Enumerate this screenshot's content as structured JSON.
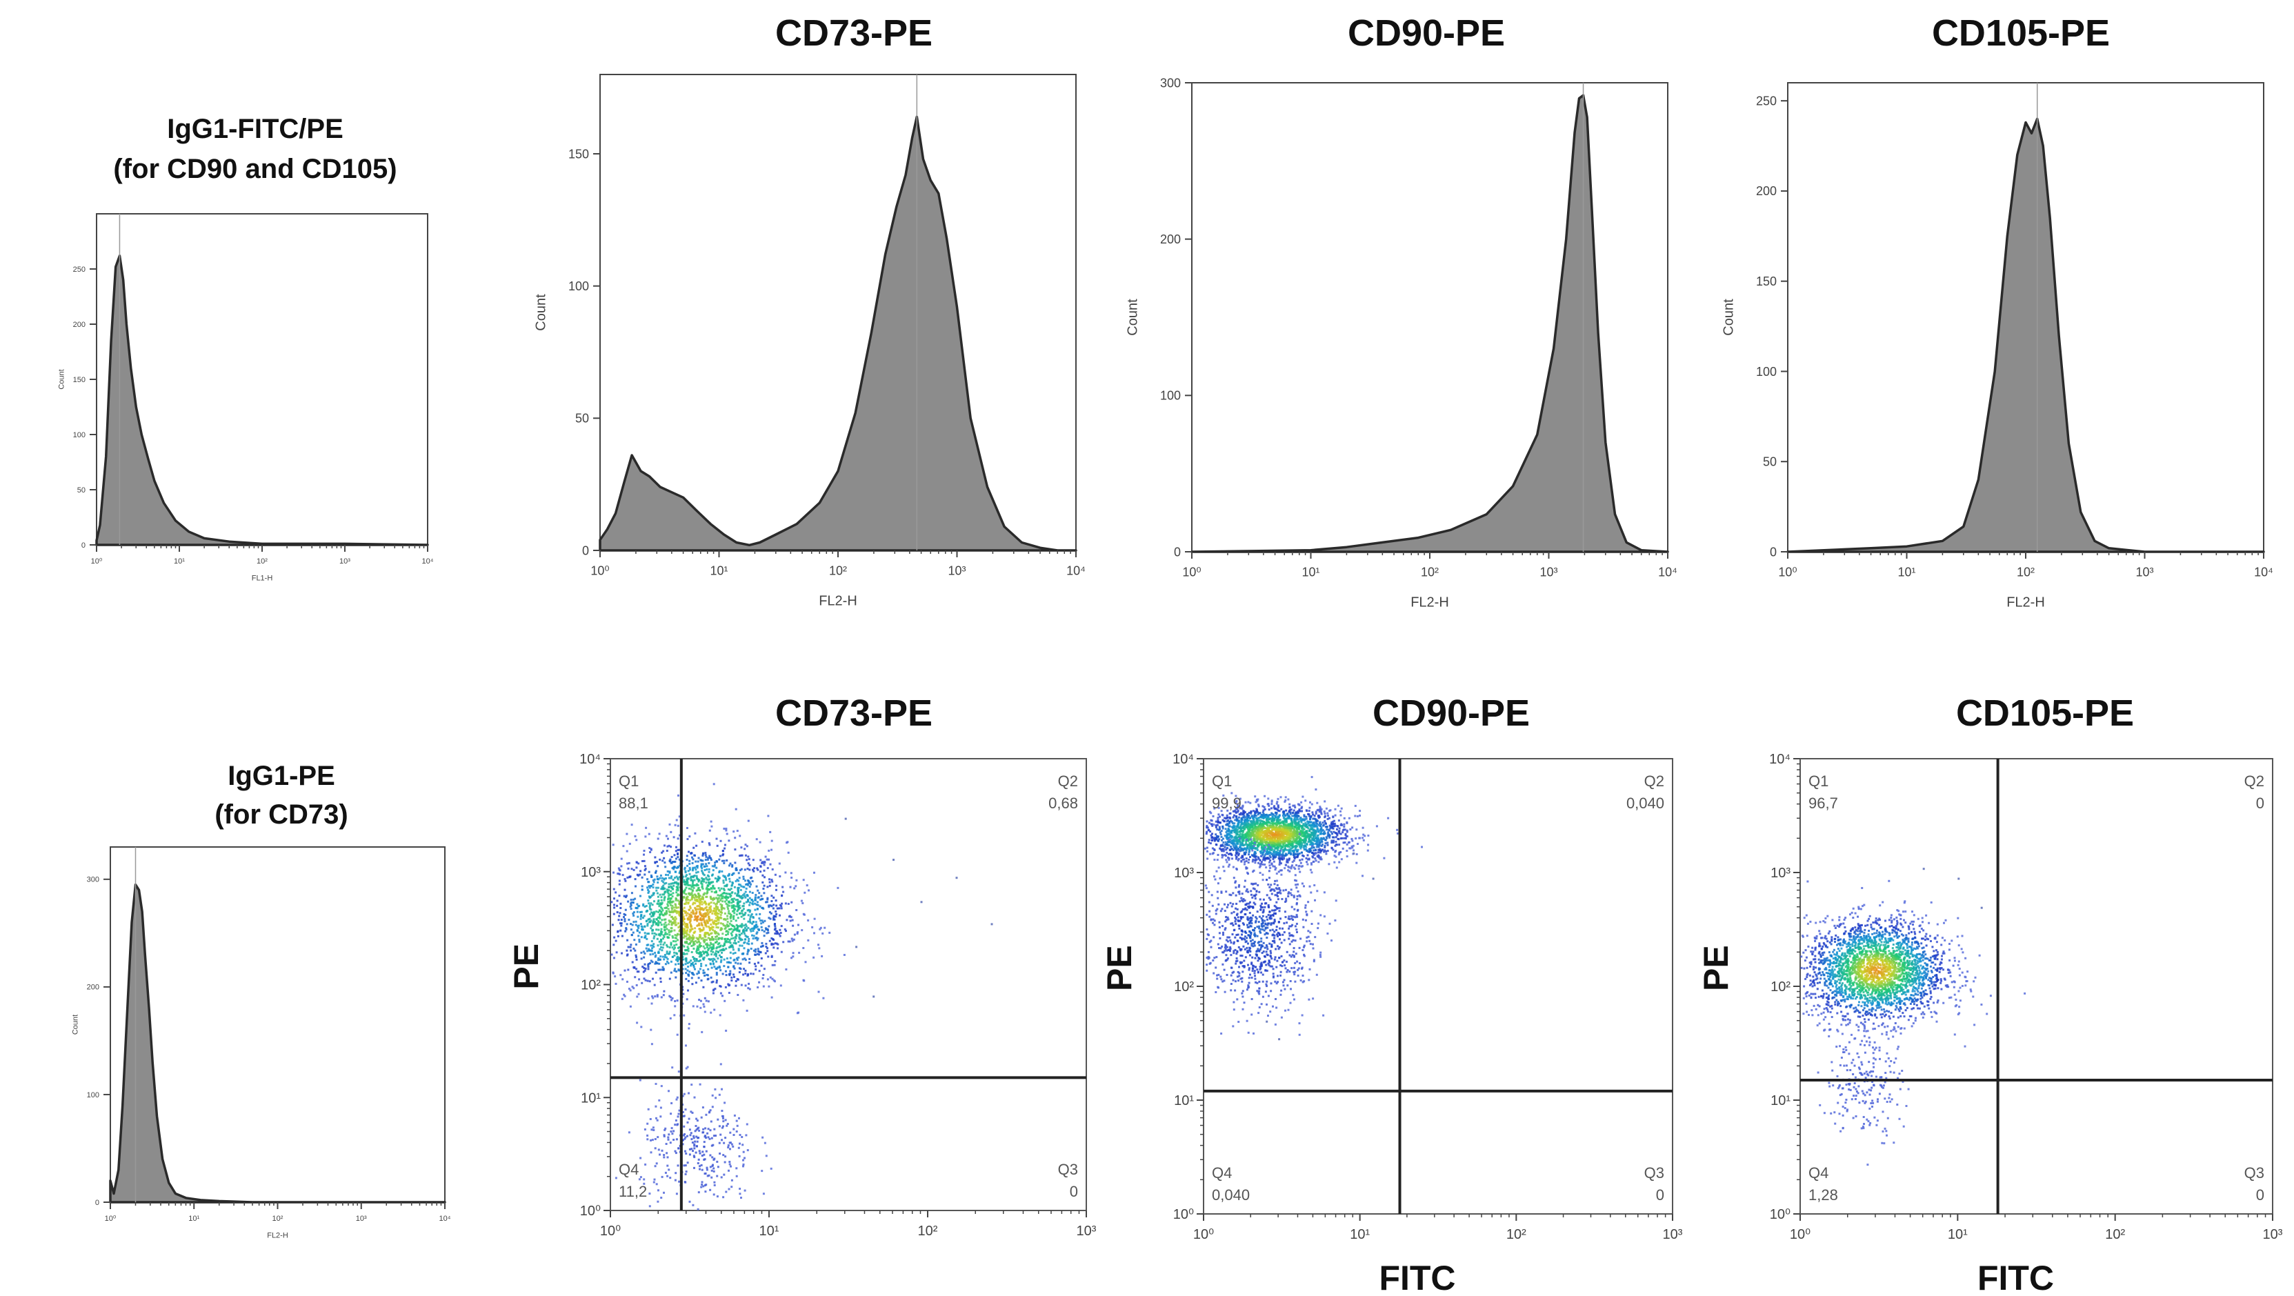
{
  "figure": {
    "top_titles": [
      "CD73-PE",
      "CD90-PE",
      "CD105-PE"
    ],
    "bottom_titles": [
      "CD73-PE",
      "CD90-PE",
      "CD105-PE"
    ],
    "control_top_title": [
      "IgG1-FITC/PE",
      "(for CD90 and CD105)"
    ],
    "control_bottom_title": [
      "IgG1-PE",
      "(for CD73)"
    ]
  },
  "chart_data": [
    {
      "id": "ctl1",
      "type": "area",
      "title": "IgG1-FITC/PE (for CD90 and CD105)",
      "xlabel": "FL1-H",
      "ylabel": "Count",
      "x_scale": "log",
      "xlim": [
        1,
        10000
      ],
      "x_ticks": [
        "10⁰",
        "10¹",
        "10²",
        "10³",
        "10⁴"
      ],
      "ylim": [
        0,
        300
      ],
      "y_ticks": [
        0,
        50,
        100,
        150,
        200,
        250
      ],
      "series": [
        {
          "x": [
            1,
            1.1,
            1.3,
            1.5,
            1.7,
            1.9,
            2.1,
            2.3,
            2.6,
            3,
            3.5,
            4.2,
            5,
            6.5,
            9,
            13,
            20,
            40,
            100,
            1000,
            10000
          ],
          "values": [
            4,
            18,
            80,
            185,
            252,
            262,
            240,
            200,
            160,
            125,
            100,
            78,
            58,
            38,
            22,
            12,
            6,
            3,
            1,
            1,
            0
          ]
        }
      ]
    },
    {
      "id": "cd73",
      "type": "area",
      "title": "CD73-PE",
      "xlabel": "FL2-H",
      "ylabel": "Count",
      "x_scale": "log",
      "xlim": [
        1,
        10000
      ],
      "x_ticks": [
        "10⁰",
        "10¹",
        "10²",
        "10³",
        "10⁴"
      ],
      "ylim": [
        0,
        180
      ],
      "y_ticks": [
        0,
        50,
        100,
        150
      ],
      "series": [
        {
          "x": [
            1,
            1.15,
            1.35,
            1.6,
            1.85,
            2.2,
            2.6,
            3.2,
            4,
            5,
            6.5,
            8.5,
            11,
            14,
            18,
            22,
            30,
            45,
            70,
            100,
            140,
            190,
            250,
            310,
            370,
            420,
            460,
            520,
            600,
            700,
            820,
            1000,
            1300,
            1800,
            2500,
            3500,
            5000,
            7000,
            10000
          ],
          "values": [
            4,
            8,
            14,
            26,
            36,
            30,
            28,
            24,
            22,
            20,
            15,
            10,
            6,
            3,
            2,
            3,
            6,
            10,
            18,
            30,
            52,
            82,
            112,
            130,
            142,
            156,
            164,
            148,
            140,
            135,
            118,
            92,
            50,
            24,
            9,
            3,
            1,
            0,
            0
          ]
        }
      ]
    },
    {
      "id": "cd90",
      "type": "area",
      "title": "CD90-PE",
      "xlabel": "FL2-H",
      "ylabel": "Count",
      "x_scale": "log",
      "xlim": [
        1,
        10000
      ],
      "x_ticks": [
        "10⁰",
        "10¹",
        "10²",
        "10³",
        "10⁴"
      ],
      "ylim": [
        0,
        300
      ],
      "y_ticks": [
        0,
        100,
        200,
        300
      ],
      "series": [
        {
          "x": [
            1,
            10,
            20,
            40,
            80,
            150,
            300,
            500,
            800,
            1100,
            1400,
            1650,
            1800,
            1950,
            2100,
            2300,
            2600,
            3000,
            3600,
            4500,
            6000,
            10000
          ],
          "values": [
            0,
            1,
            3,
            6,
            9,
            14,
            24,
            42,
            75,
            130,
            200,
            268,
            290,
            292,
            278,
            220,
            140,
            70,
            24,
            6,
            1,
            0
          ]
        }
      ]
    },
    {
      "id": "cd105",
      "type": "area",
      "title": "CD105-PE",
      "xlabel": "FL2-H",
      "ylabel": "Count",
      "x_scale": "log",
      "xlim": [
        1,
        10000
      ],
      "x_ticks": [
        "10⁰",
        "10¹",
        "10²",
        "10³",
        "10⁴"
      ],
      "ylim": [
        0,
        260
      ],
      "y_ticks": [
        0,
        50,
        100,
        150,
        200,
        250
      ],
      "series": [
        {
          "x": [
            1,
            5,
            10,
            20,
            30,
            40,
            55,
            70,
            85,
            100,
            112,
            125,
            140,
            160,
            190,
            230,
            290,
            380,
            500,
            700,
            1000,
            10000
          ],
          "values": [
            0,
            2,
            3,
            6,
            14,
            40,
            100,
            175,
            220,
            238,
            232,
            240,
            225,
            185,
            120,
            60,
            22,
            6,
            2,
            1,
            0,
            0
          ]
        }
      ]
    },
    {
      "id": "ctl2",
      "type": "area",
      "title": "IgG1-PE (for CD73)",
      "xlabel": "FL2-H",
      "ylabel": "Count",
      "x_scale": "log",
      "xlim": [
        1,
        10000
      ],
      "x_ticks": [
        "10⁰",
        "10¹",
        "10²",
        "10³",
        "10⁴"
      ],
      "ylim": [
        0,
        330
      ],
      "y_ticks": [
        0,
        100,
        200,
        300
      ],
      "series": [
        {
          "x": [
            1,
            1.1,
            1.25,
            1.4,
            1.6,
            1.8,
            2.0,
            2.2,
            2.4,
            2.6,
            2.9,
            3.2,
            3.6,
            4.2,
            5,
            6,
            8,
            12,
            20,
            50,
            1000,
            10000
          ],
          "values": [
            20,
            8,
            30,
            90,
            180,
            260,
            295,
            290,
            270,
            230,
            180,
            130,
            80,
            40,
            18,
            8,
            4,
            2,
            1,
            0,
            0,
            0
          ]
        }
      ]
    },
    {
      "id": "dot_cd73",
      "type": "scatter",
      "title": "CD73-PE",
      "xlabel": "",
      "ylabel": "PE",
      "x_scale": "log",
      "y_scale": "log",
      "xlim": [
        1,
        1000
      ],
      "ylim": [
        1,
        10000
      ],
      "x_ticks": [
        "10⁰",
        "10¹",
        "10²",
        "10³"
      ],
      "y_ticks": [
        "10⁰",
        "10¹",
        "10²",
        "10³",
        "10⁴"
      ],
      "gate": {
        "x": 2.8,
        "y": 15
      },
      "quadrants": {
        "Q1": "88,1",
        "Q2": "0,68",
        "Q3": "0",
        "Q4": "11,2"
      },
      "clusters": [
        {
          "cx": 3.5,
          "cy": 400,
          "sx": 0.28,
          "sy": 0.33,
          "weight": 1.0
        },
        {
          "cx": 3.5,
          "cy": 3.5,
          "sx": 0.18,
          "sy": 0.28,
          "weight": 0.13
        }
      ],
      "stray_points": [
        [
          60,
          1300
        ],
        [
          90,
          550
        ],
        [
          35,
          220
        ],
        [
          150,
          900
        ],
        [
          45,
          80
        ],
        [
          250,
          350
        ],
        [
          30,
          3000
        ]
      ]
    },
    {
      "id": "dot_cd90",
      "type": "scatter",
      "title": "CD90-PE",
      "xlabel": "FITC",
      "ylabel": "PE",
      "x_scale": "log",
      "y_scale": "log",
      "xlim": [
        1,
        1000
      ],
      "ylim": [
        1,
        10000
      ],
      "x_ticks": [
        "10⁰",
        "10¹",
        "10²",
        "10³"
      ],
      "y_ticks": [
        "10⁰",
        "10¹",
        "10²",
        "10³",
        "10⁴"
      ],
      "gate": {
        "x": 18,
        "y": 12
      },
      "quadrants": {
        "Q1": "99,9",
        "Q2": "0,040",
        "Q3": "0",
        "Q4": "0,040"
      },
      "clusters": [
        {
          "cx": 2.8,
          "cy": 2200,
          "sx": 0.22,
          "sy": 0.12,
          "weight": 1.0
        },
        {
          "cx": 2.2,
          "cy": 300,
          "sx": 0.18,
          "sy": 0.32,
          "weight": 0.35
        }
      ],
      "stray_points": [
        [
          12,
          900
        ],
        [
          9,
          1500
        ],
        [
          3,
          35
        ],
        [
          2.5,
          50
        ]
      ]
    },
    {
      "id": "dot_cd105",
      "type": "scatter",
      "title": "CD105-PE",
      "xlabel": "FITC",
      "ylabel": "PE",
      "x_scale": "log",
      "y_scale": "log",
      "xlim": [
        1,
        1000
      ],
      "ylim": [
        1,
        10000
      ],
      "x_ticks": [
        "10⁰",
        "10¹",
        "10²",
        "10³"
      ],
      "y_ticks": [
        "10⁰",
        "10¹",
        "10²",
        "10³",
        "10⁴"
      ],
      "gate": {
        "x": 18,
        "y": 15
      },
      "quadrants": {
        "Q1": "96,7",
        "Q2": "0",
        "Q3": "0",
        "Q4": "1,28"
      },
      "clusters": [
        {
          "cx": 3.0,
          "cy": 140,
          "sx": 0.22,
          "sy": 0.22,
          "weight": 1.0
        },
        {
          "cx": 2.5,
          "cy": 15,
          "sx": 0.12,
          "sy": 0.25,
          "weight": 0.08
        }
      ],
      "stray_points": [
        [
          14,
          500
        ],
        [
          10,
          900
        ],
        [
          6,
          1100
        ]
      ]
    }
  ]
}
